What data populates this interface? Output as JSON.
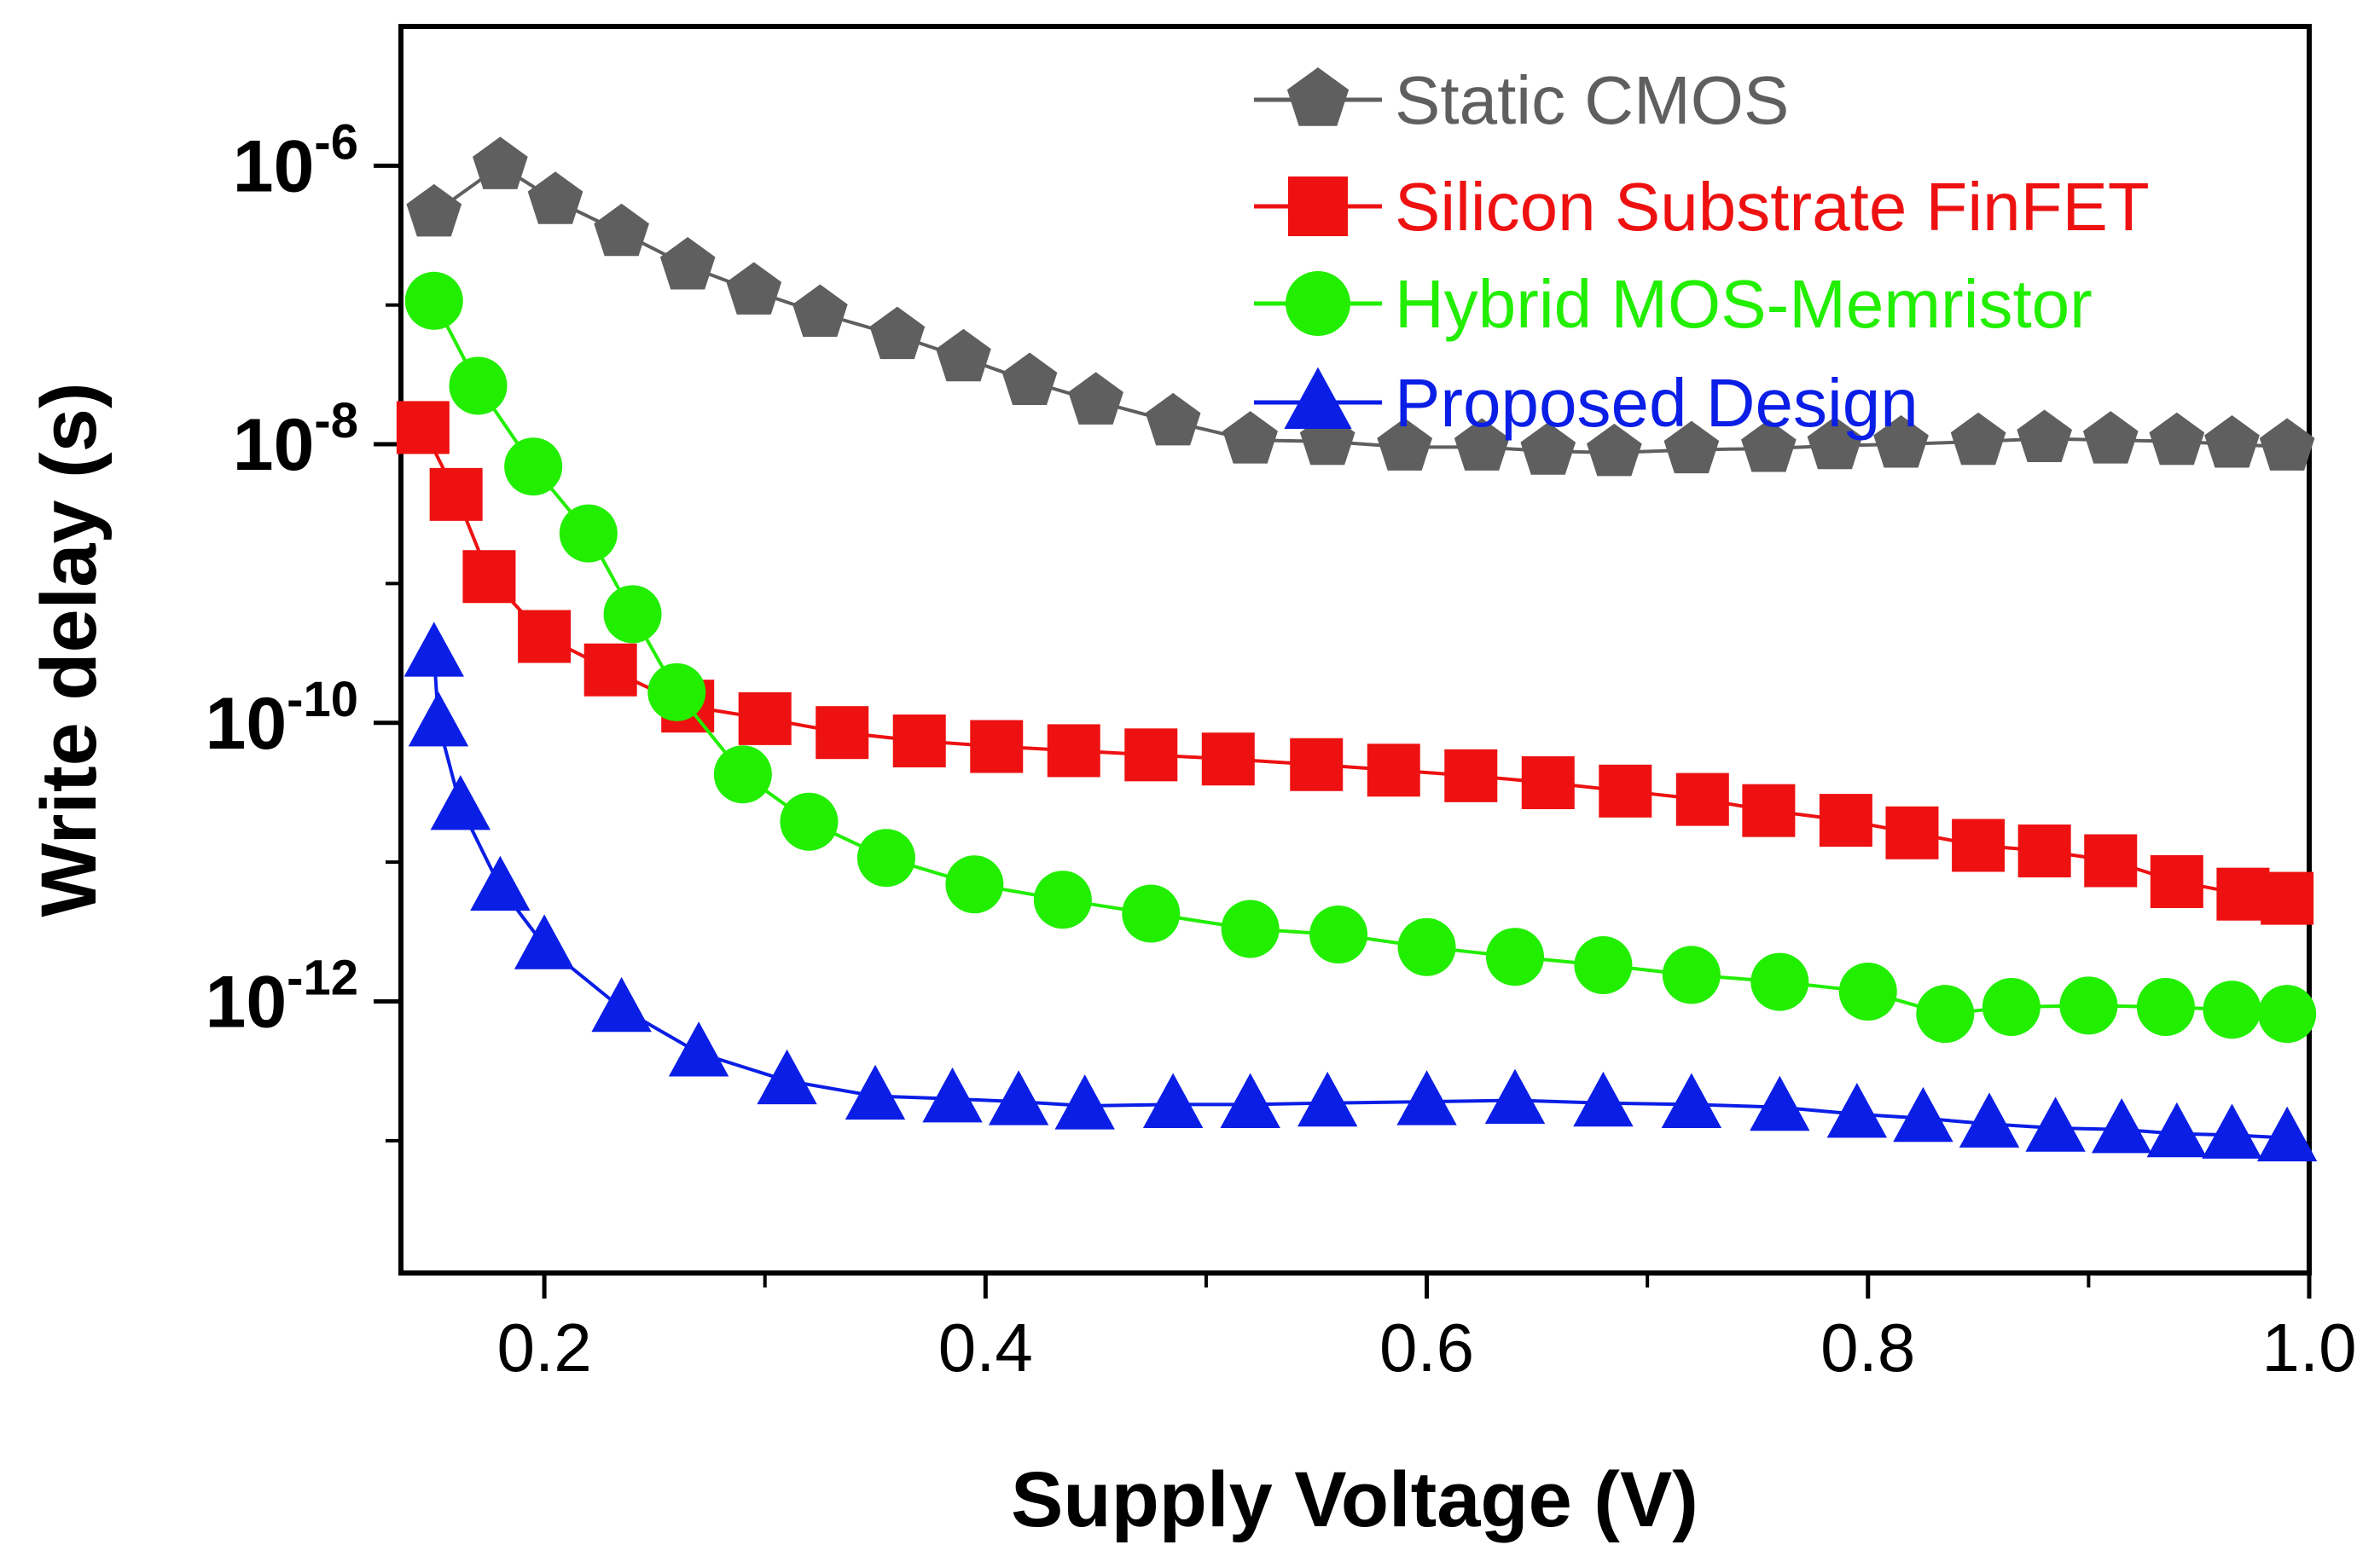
{
  "chart_data": {
    "type": "line",
    "xlabel": "Supply Voltage (V)",
    "ylabel": "Write delay (s)",
    "xlim": [
      0.135,
      1.0
    ],
    "ylim_log10": [
      -13.95,
      -5.0
    ],
    "yscale": "log",
    "x_ticks": [
      "0.2",
      "0.4",
      "0.6",
      "0.8",
      "1.0"
    ],
    "x_tick_values": [
      0.2,
      0.4,
      0.6,
      0.8,
      1.0
    ],
    "y_ticks": [
      {
        "base": "10",
        "exp": "-6",
        "log10": -6
      },
      {
        "base": "10",
        "exp": "-8",
        "log10": -8
      },
      {
        "base": "10",
        "exp": "-10",
        "log10": -10
      },
      {
        "base": "10",
        "exp": "-12",
        "log10": -12
      }
    ],
    "legend_position": "top-right",
    "series": [
      {
        "name": "Static CMOS",
        "color": "#5f5f5f",
        "marker": "pentagon",
        "x": [
          0.15,
          0.18,
          0.205,
          0.235,
          0.265,
          0.295,
          0.325,
          0.36,
          0.39,
          0.42,
          0.45,
          0.485,
          0.52,
          0.555,
          0.59,
          0.625,
          0.655,
          0.685,
          0.72,
          0.755,
          0.785,
          0.815,
          0.85,
          0.88,
          0.91,
          0.94,
          0.965,
          0.99
        ],
        "y": [
          -6.34,
          -6.0,
          -6.25,
          -6.48,
          -6.72,
          -6.9,
          -7.06,
          -7.22,
          -7.38,
          -7.55,
          -7.69,
          -7.84,
          -7.97,
          -7.98,
          -8.02,
          -8.02,
          -8.05,
          -8.06,
          -8.04,
          -8.03,
          -8.01,
          -8.0,
          -7.98,
          -7.96,
          -7.97,
          -7.98,
          -8.0,
          -8.02
        ]
      },
      {
        "name": "Silicon Substrate FinFET",
        "color": "#ee1111",
        "marker": "square",
        "x": [
          0.145,
          0.16,
          0.175,
          0.2,
          0.23,
          0.265,
          0.3,
          0.335,
          0.37,
          0.405,
          0.44,
          0.475,
          0.51,
          0.55,
          0.585,
          0.62,
          0.655,
          0.69,
          0.725,
          0.755,
          0.79,
          0.82,
          0.85,
          0.88,
          0.91,
          0.94,
          0.97,
          0.99
        ],
        "y": [
          -7.88,
          -8.36,
          -8.95,
          -9.38,
          -9.62,
          -9.88,
          -9.97,
          -10.07,
          -10.13,
          -10.17,
          -10.2,
          -10.23,
          -10.26,
          -10.3,
          -10.34,
          -10.38,
          -10.43,
          -10.49,
          -10.55,
          -10.63,
          -10.7,
          -10.79,
          -10.88,
          -10.92,
          -10.99,
          -11.14,
          -11.23,
          -11.26
        ]
      },
      {
        "name": "Hybrid MOS-Memristor",
        "color": "#22ee00",
        "marker": "circle",
        "x": [
          0.15,
          0.17,
          0.195,
          0.22,
          0.24,
          0.26,
          0.29,
          0.32,
          0.355,
          0.395,
          0.435,
          0.475,
          0.52,
          0.56,
          0.6,
          0.64,
          0.68,
          0.72,
          0.76,
          0.8,
          0.835,
          0.865,
          0.9,
          0.935,
          0.965,
          0.99
        ],
        "y": [
          -6.97,
          -7.58,
          -8.16,
          -8.64,
          -9.22,
          -9.78,
          -10.37,
          -10.71,
          -10.97,
          -11.16,
          -11.27,
          -11.37,
          -11.48,
          -11.52,
          -11.61,
          -11.68,
          -11.74,
          -11.81,
          -11.86,
          -11.93,
          -12.09,
          -12.04,
          -12.03,
          -12.04,
          -12.06,
          -12.09
        ]
      },
      {
        "name": "Proposed Design",
        "color": "#0a1ee6",
        "marker": "triangle",
        "x": [
          0.15,
          0.152,
          0.162,
          0.18,
          0.2,
          0.235,
          0.27,
          0.31,
          0.35,
          0.385,
          0.415,
          0.445,
          0.485,
          0.52,
          0.555,
          0.6,
          0.64,
          0.68,
          0.72,
          0.76,
          0.795,
          0.825,
          0.855,
          0.885,
          0.915,
          0.94,
          0.965,
          0.99
        ],
        "y": [
          -9.5,
          -10.0,
          -10.6,
          -11.18,
          -11.6,
          -12.05,
          -12.37,
          -12.57,
          -12.68,
          -12.7,
          -12.72,
          -12.75,
          -12.74,
          -12.74,
          -12.73,
          -12.72,
          -12.71,
          -12.73,
          -12.74,
          -12.76,
          -12.81,
          -12.84,
          -12.88,
          -12.91,
          -12.92,
          -12.95,
          -12.96,
          -12.98
        ]
      }
    ]
  }
}
